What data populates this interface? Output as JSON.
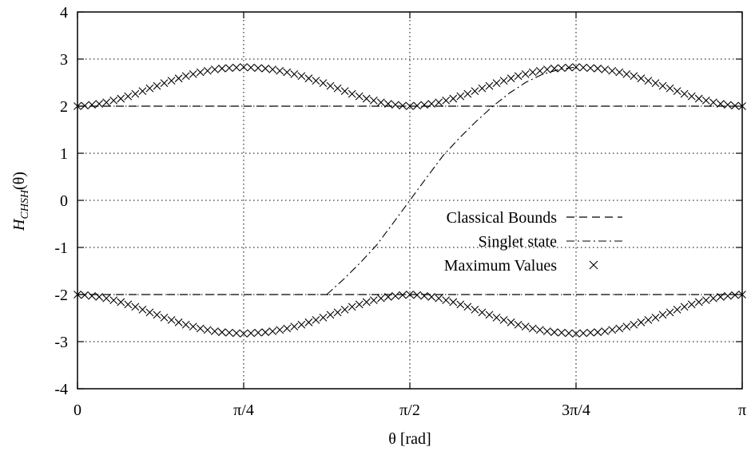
{
  "chart_data": {
    "type": "line",
    "xlabel": "θ [rad]",
    "ylabel_main": "H",
    "ylabel_sub": "CHSH",
    "ylabel_arg": "(θ)",
    "xlim": [
      0,
      3.14159
    ],
    "ylim": [
      -4,
      4
    ],
    "grid": true,
    "legend_position": "center-right",
    "x_ticks": [
      {
        "value": 0,
        "label": "0"
      },
      {
        "value": 0.785398,
        "label": "π/4"
      },
      {
        "value": 1.570796,
        "label": "π/2"
      },
      {
        "value": 2.356194,
        "label": "3π/4"
      },
      {
        "value": 3.141593,
        "label": "π"
      }
    ],
    "y_ticks": [
      {
        "value": 4,
        "label": "4"
      },
      {
        "value": 3,
        "label": "3"
      },
      {
        "value": 2,
        "label": "2"
      },
      {
        "value": 1,
        "label": "1"
      },
      {
        "value": 0,
        "label": "0"
      },
      {
        "value": -1,
        "label": "-1"
      },
      {
        "value": -2,
        "label": "-2"
      },
      {
        "value": -3,
        "label": "-3"
      },
      {
        "value": -4,
        "label": "-4"
      }
    ],
    "series": [
      {
        "name": "Classical Bounds",
        "style": "dashed",
        "segments": [
          {
            "x": [
              0,
              3.14159
            ],
            "y": [
              2,
              2
            ]
          },
          {
            "x": [
              0,
              3.14159
            ],
            "y": [
              -2,
              -2
            ]
          }
        ]
      },
      {
        "name": "Singlet state",
        "style": "dash-dot",
        "x": [
          1.1781,
          1.2566,
          1.3352,
          1.4137,
          1.4923,
          1.5708,
          1.6493,
          1.7279,
          1.8064,
          1.885,
          1.9635,
          2.042,
          2.1206,
          2.1991,
          2.2777,
          2.3562
        ],
        "y": [
          -2.0,
          -1.68,
          -1.33,
          -0.95,
          -0.48,
          0.0,
          0.48,
          0.95,
          1.33,
          1.68,
          2.0,
          2.28,
          2.51,
          2.68,
          2.78,
          2.83
        ]
      },
      {
        "name": "Maximum Values",
        "style": "markers-x",
        "x_start": 0,
        "x_end": 3.14159,
        "upper": [
          2.0,
          2.01,
          2.03,
          2.05,
          2.08,
          2.12,
          2.16,
          2.21,
          2.26,
          2.32,
          2.38,
          2.43,
          2.49,
          2.54,
          2.59,
          2.64,
          2.68,
          2.72,
          2.75,
          2.78,
          2.8,
          2.81,
          2.82,
          2.83,
          2.82,
          2.81,
          2.8,
          2.78,
          2.75,
          2.72,
          2.68,
          2.64,
          2.59,
          2.54,
          2.49,
          2.43,
          2.38,
          2.32,
          2.26,
          2.21,
          2.16,
          2.12,
          2.08,
          2.05,
          2.03,
          2.01,
          2.0,
          2.01,
          2.03,
          2.05,
          2.08,
          2.12,
          2.16,
          2.21,
          2.26,
          2.32,
          2.38,
          2.43,
          2.49,
          2.54,
          2.59,
          2.64,
          2.68,
          2.72,
          2.75,
          2.78,
          2.8,
          2.81,
          2.82,
          2.83,
          2.82,
          2.81,
          2.8,
          2.78,
          2.75,
          2.72,
          2.68,
          2.64,
          2.59,
          2.54,
          2.49,
          2.43,
          2.38,
          2.32,
          2.26,
          2.21,
          2.16,
          2.12,
          2.08,
          2.05,
          2.03,
          2.01,
          2.0
        ],
        "lower": [
          -2.0,
          -2.01,
          -2.03,
          -2.05,
          -2.08,
          -2.12,
          -2.16,
          -2.21,
          -2.26,
          -2.32,
          -2.38,
          -2.43,
          -2.49,
          -2.54,
          -2.59,
          -2.64,
          -2.68,
          -2.72,
          -2.75,
          -2.78,
          -2.8,
          -2.81,
          -2.82,
          -2.83,
          -2.82,
          -2.81,
          -2.8,
          -2.78,
          -2.75,
          -2.72,
          -2.68,
          -2.64,
          -2.59,
          -2.54,
          -2.49,
          -2.43,
          -2.38,
          -2.32,
          -2.26,
          -2.21,
          -2.16,
          -2.12,
          -2.08,
          -2.05,
          -2.03,
          -2.01,
          -2.0,
          -2.01,
          -2.03,
          -2.05,
          -2.08,
          -2.12,
          -2.16,
          -2.21,
          -2.26,
          -2.32,
          -2.38,
          -2.43,
          -2.49,
          -2.54,
          -2.59,
          -2.64,
          -2.68,
          -2.72,
          -2.75,
          -2.78,
          -2.8,
          -2.81,
          -2.82,
          -2.83,
          -2.82,
          -2.81,
          -2.8,
          -2.78,
          -2.75,
          -2.72,
          -2.68,
          -2.64,
          -2.59,
          -2.54,
          -2.49,
          -2.43,
          -2.38,
          -2.32,
          -2.26,
          -2.21,
          -2.16,
          -2.12,
          -2.08,
          -2.05,
          -2.03,
          -2.01,
          -2.0
        ]
      }
    ]
  }
}
